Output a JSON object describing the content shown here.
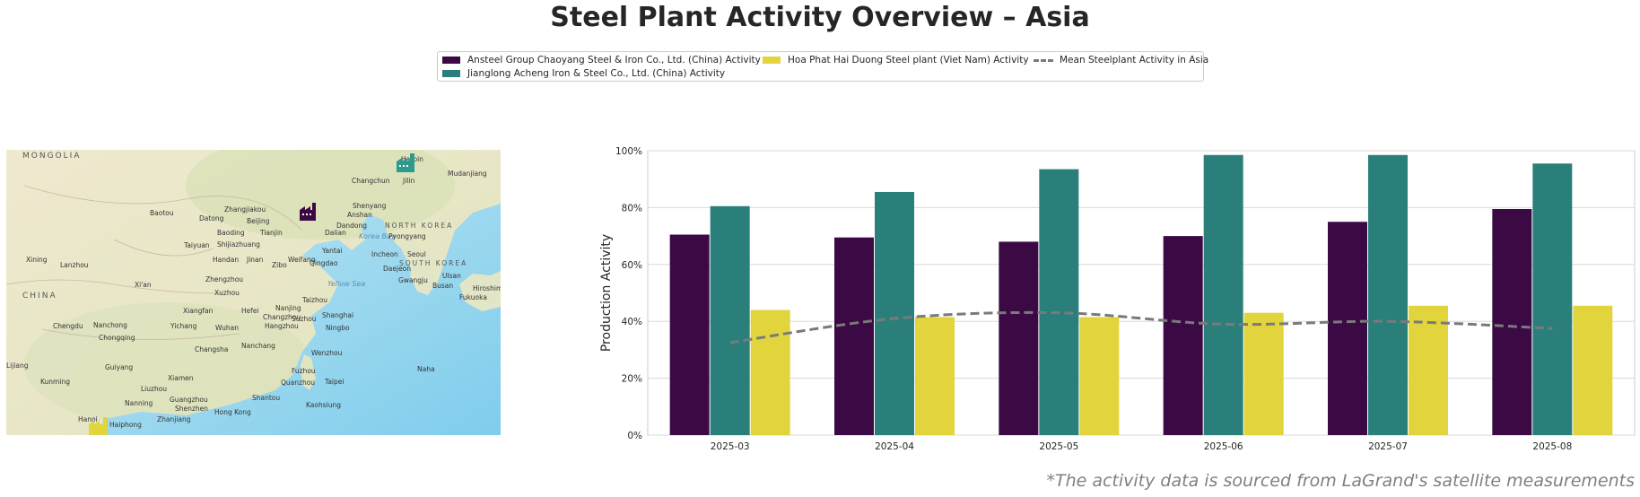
{
  "title": "Steel Plant Activity Overview – Asia",
  "footnote": "*The activity data is sourced from LaGrand's satellite measurements",
  "legend": [
    {
      "label": "Ansteel Group Chaoyang Steel & Iron Co., Ltd. (China) Activity",
      "color": "#3b0a45",
      "kind": "bar"
    },
    {
      "label": "Jianglong Acheng Iron & Steel Co., Ltd. (China) Activity",
      "color": "#2b7f7a",
      "kind": "bar"
    },
    {
      "label": "Hoa Phat Hai Duong Steel plant (Viet Nam) Activity",
      "color": "#e2d43c",
      "kind": "bar"
    },
    {
      "label": "Mean Steelplant Activity in Asia",
      "color": "#7a7a7a",
      "kind": "line"
    }
  ],
  "map": {
    "labels": {
      "mongolia": "MONGOLIA",
      "china": "CHINA",
      "north_korea": "NORTH KOREA",
      "south_korea": "SOUTH KOREA",
      "korea_bay": "Korea Bay",
      "yellow_sea": "Yellow Sea",
      "harbin": "Harbin",
      "changchun": "Changchun",
      "jilin": "Jilin",
      "mudanjiang": "Mudanjiang",
      "shenyang": "Shenyang",
      "anshan": "Anshan",
      "dandong": "Dandong",
      "pyongyang": "Pyongyang",
      "seoul": "Seoul",
      "incheon": "Incheon",
      "daejeon": "Daejeon",
      "busan": "Busan",
      "beijing": "Beijing",
      "tianjin": "Tianjin",
      "baoding": "Baoding",
      "datong": "Datong",
      "zhangjiakou": "Zhangjiakou",
      "baotou": "Baotou",
      "dalian": "Dalian",
      "yantai": "Yantai",
      "qingdao": "Qingdao",
      "taiyuan": "Taiyuan",
      "shijiazhuang": "Shijiazhuang",
      "jinan": "Jinan",
      "zibo": "Zibo",
      "handan": "Handan",
      "weifang": "Weifang",
      "xining": "Xining",
      "lanzhou": "Lanzhou",
      "xian": "Xi'an",
      "zhengzhou": "Zhengzhou",
      "xuzhou": "Xuzhou",
      "xiangfan": "Xiangfan",
      "hefei": "Hefei",
      "nanjing": "Nanjing",
      "changzhou": "Changzhou",
      "suzhou": "Suzhou",
      "shanghai": "Shanghai",
      "hangzhou": "Hangzhou",
      "ningbo": "Ningbo",
      "wuhan": "Wuhan",
      "yichang": "Yichang",
      "chengdu": "Chengdu",
      "nanchong": "Nanchong",
      "chongqing": "Chongqing",
      "changsha": "Changsha",
      "nanchang": "Nanchang",
      "wenzhou": "Wenzhou",
      "fuzhou": "Fuzhou",
      "quanzhou": "Quanzhou",
      "taipei": "Taipei",
      "kaohsiung": "Kaohsiung",
      "xiamen": "Xiamen",
      "shantou": "Shantou",
      "guangzhou": "Guangzhou",
      "shenzhen": "Shenzhen",
      "hong_kong": "Hong Kong",
      "guiyang": "Guiyang",
      "kunming": "Kunming",
      "nanning": "Nanning",
      "liuzhou": "Liuzhou",
      "zhanjiang": "Zhanjiang",
      "haiphong": "Haiphong",
      "hanoi": "Hanoi",
      "naha": "Naha",
      "fukuoka": "Fukuoka",
      "hiroshima": "Hiroshima",
      "ulsan": "Ulsan",
      "gwangju": "Gwangju",
      "lijiang": "Lijiang",
      "taizhou": "Taizhou"
    },
    "markers": [
      {
        "name": "Ansteel Group Chaoyang Steel & Iron Co., Ltd.",
        "color": "#3b0a45"
      },
      {
        "name": "Jianglong Acheng Iron & Steel Co., Ltd.",
        "color": "#2b9a8f"
      },
      {
        "name": "Hoa Phat Hai Duong Steel plant",
        "color": "#e2d43c"
      }
    ]
  },
  "chart_data": {
    "type": "bar",
    "ylabel": "Production Activity",
    "xlabel": "",
    "categories": [
      "2025-03",
      "2025-04",
      "2025-05",
      "2025-06",
      "2025-07",
      "2025-08"
    ],
    "ylim": [
      0,
      100
    ],
    "yticks": [
      "0%",
      "20%",
      "40%",
      "60%",
      "80%",
      "100%"
    ],
    "grid": "y",
    "legend_position": "top-center",
    "series": [
      {
        "name": "Ansteel Group Chaoyang Steel & Iron Co., Ltd. (China) Activity",
        "type": "bar",
        "color": "#3b0a45",
        "values": [
          70.5,
          69.5,
          68,
          70,
          75,
          79.5
        ]
      },
      {
        "name": "Jianglong Acheng Iron & Steel Co., Ltd. (China) Activity",
        "type": "bar",
        "color": "#2b7f7a",
        "values": [
          80.5,
          85.5,
          93.5,
          98.5,
          98.5,
          95.5
        ]
      },
      {
        "name": "Hoa Phat Hai Duong Steel plant (Viet Nam) Activity",
        "type": "bar",
        "color": "#e2d43c",
        "values": [
          44,
          41.5,
          41.5,
          43,
          45.5,
          45.5
        ]
      },
      {
        "name": "Mean Steelplant Activity in Asia",
        "type": "line",
        "color": "#7a7a7a",
        "values": [
          32.5,
          41,
          43,
          39,
          40,
          37.5
        ]
      }
    ]
  }
}
